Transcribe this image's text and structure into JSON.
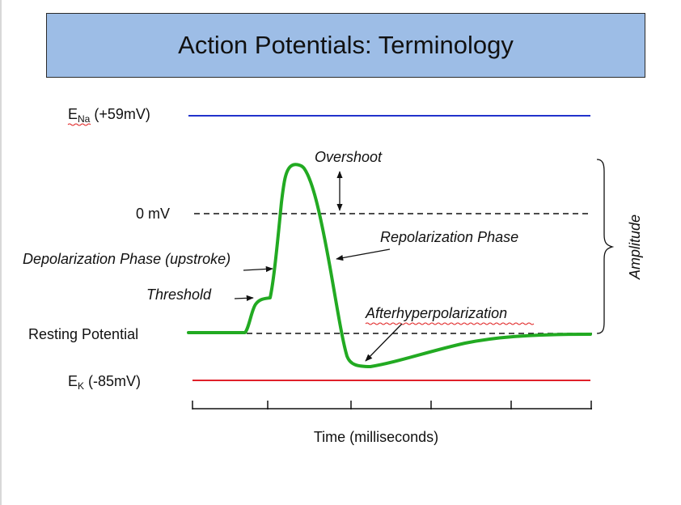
{
  "title": "Action Potentials: Terminology",
  "labels": {
    "ena_main": "E",
    "ena_sub": "Na",
    "ena_value": " (+59mV)",
    "zero_mv": "0 mV",
    "resting": "Resting Potential",
    "ek_main": "E",
    "ek_sub": "K",
    "ek_value": " (-85mV)",
    "overshoot": "Overshoot",
    "repolarization": "Repolarization Phase",
    "depolarization": "Depolarization Phase (upstroke)",
    "threshold": "Threshold",
    "afterhyperpolarization": "Afterhyperpolarization",
    "amplitude": "Amplitude",
    "time_axis": "Time (milliseconds)"
  },
  "colors": {
    "ena_line": "#2233cc",
    "ek_line": "#e0202a",
    "trace": "#22aa22",
    "title_fill": "#9dbde6"
  }
}
